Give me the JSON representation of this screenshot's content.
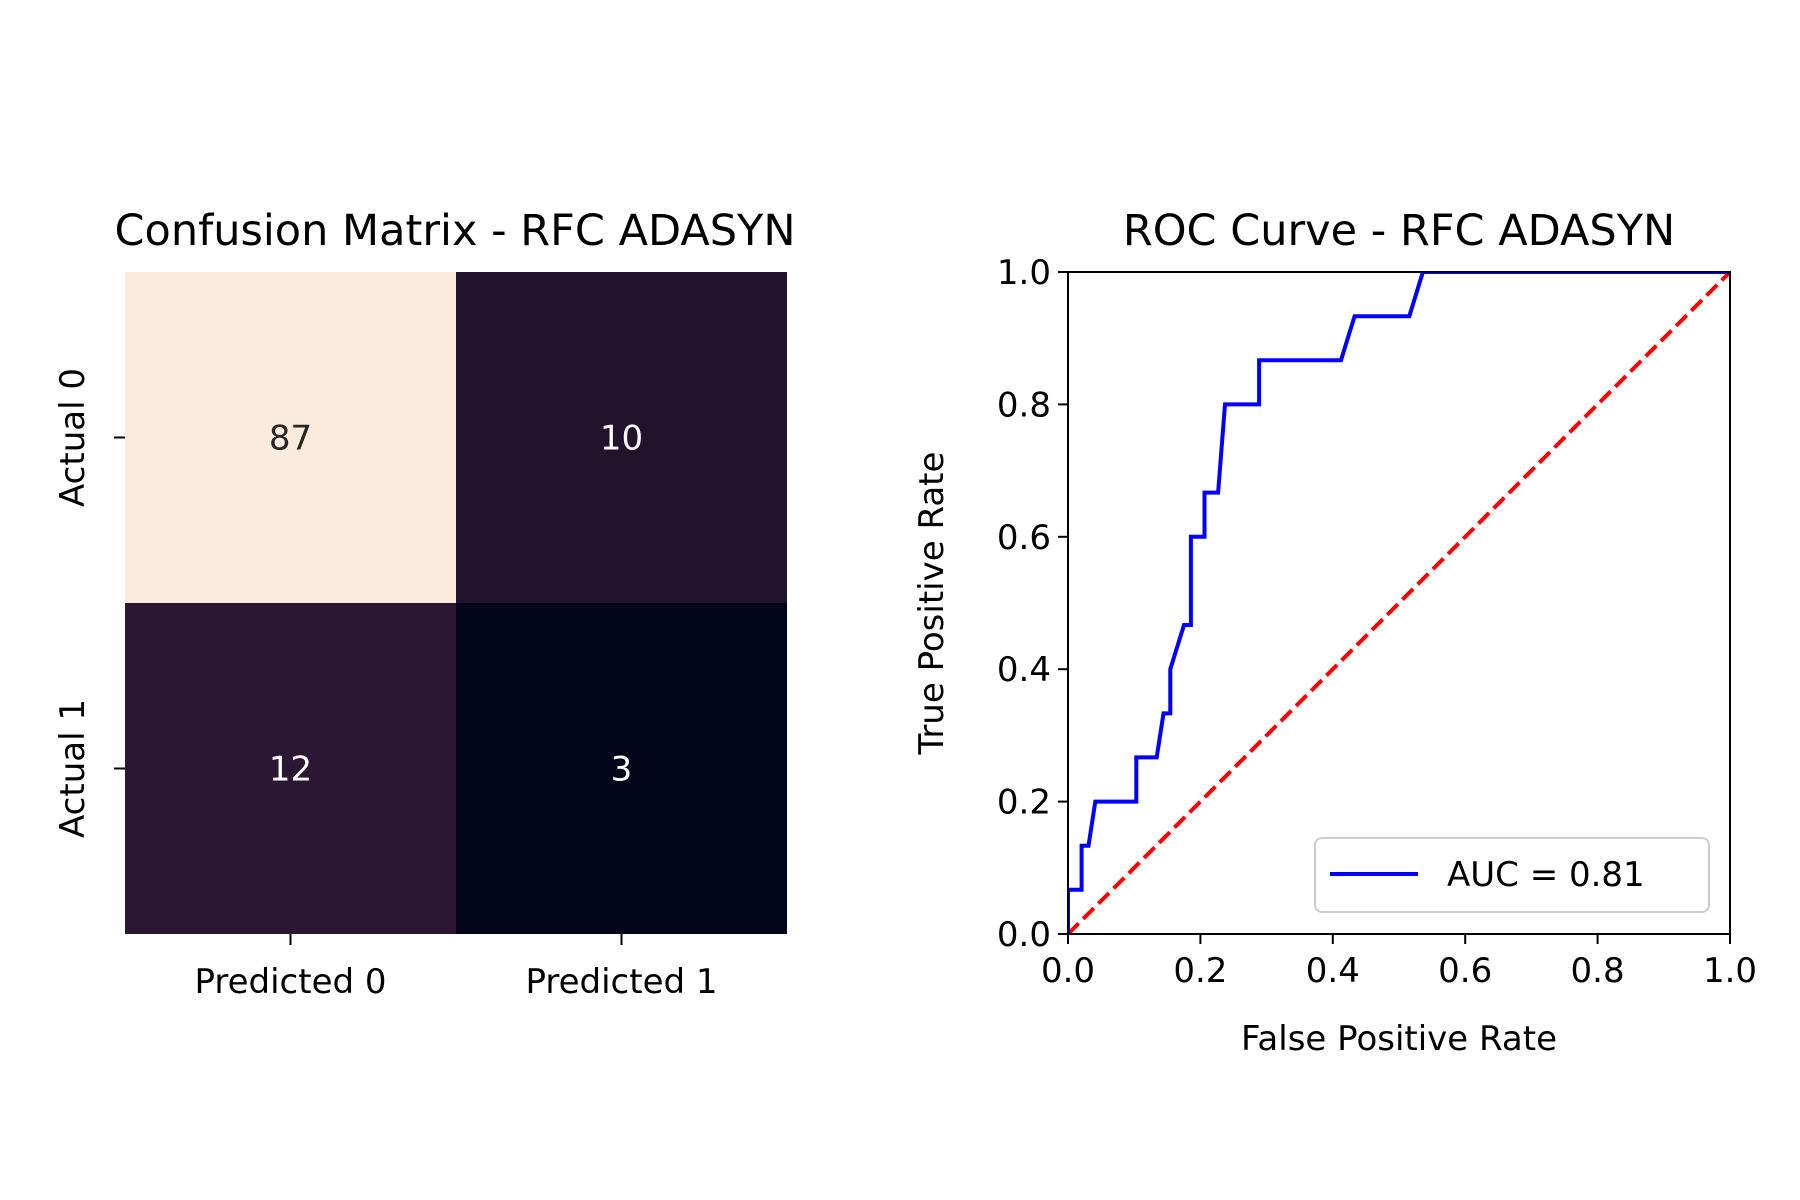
{
  "chart_data": [
    {
      "type": "heatmap",
      "title": "Confusion Matrix - RFC ADASYN",
      "x_categories": [
        "Predicted 0",
        "Predicted 1"
      ],
      "y_categories": [
        "Actual 0",
        "Actual 1"
      ],
      "values": [
        [
          87,
          10
        ],
        [
          12,
          3
        ]
      ],
      "cell_colors": [
        [
          "#fbebdd",
          "#22132d"
        ],
        [
          "#2b1734",
          "#03051a"
        ]
      ],
      "label_colors": [
        [
          "#262626",
          "#ffffff"
        ],
        [
          "#ffffff",
          "#ffffff"
        ]
      ],
      "colorbar": false
    },
    {
      "type": "line",
      "title": "ROC Curve - RFC ADASYN",
      "xlabel": "False Positive Rate",
      "ylabel": "True Positive Rate",
      "xlim": [
        0.0,
        1.0
      ],
      "ylim": [
        0.0,
        1.0
      ],
      "xticks": [
        "0.0",
        "0.2",
        "0.4",
        "0.6",
        "0.8",
        "1.0"
      ],
      "yticks": [
        "0.0",
        "0.2",
        "0.4",
        "0.6",
        "0.8",
        "1.0"
      ],
      "legend_position": "lower-right",
      "series": [
        {
          "name": "AUC = 0.81",
          "color": "#0000ff",
          "style": "solid",
          "x": [
            0.0,
            0.0,
            0.0206,
            0.0206,
            0.0309,
            0.0412,
            0.0412,
            0.1031,
            0.1031,
            0.134,
            0.134,
            0.1443,
            0.1546,
            0.1546,
            0.1753,
            0.1856,
            0.1856,
            0.2062,
            0.2062,
            0.2268,
            0.2371,
            0.2371,
            0.2887,
            0.2887,
            0.4124,
            0.433,
            0.433,
            0.5155,
            0.5361,
            0.5361,
            1.0
          ],
          "y": [
            0.0,
            0.0667,
            0.0667,
            0.1333,
            0.1333,
            0.2,
            0.2,
            0.2,
            0.2667,
            0.2667,
            0.2667,
            0.3333,
            0.3333,
            0.4,
            0.4667,
            0.4667,
            0.6,
            0.6,
            0.6667,
            0.6667,
            0.8,
            0.8,
            0.8,
            0.8667,
            0.8667,
            0.9333,
            0.9333,
            0.9333,
            1.0,
            1.0,
            1.0
          ]
        },
        {
          "name": "",
          "color": "#ff0000",
          "style": "dashed",
          "x": [
            0.0,
            1.0
          ],
          "y": [
            0.0,
            1.0
          ]
        }
      ]
    }
  ]
}
